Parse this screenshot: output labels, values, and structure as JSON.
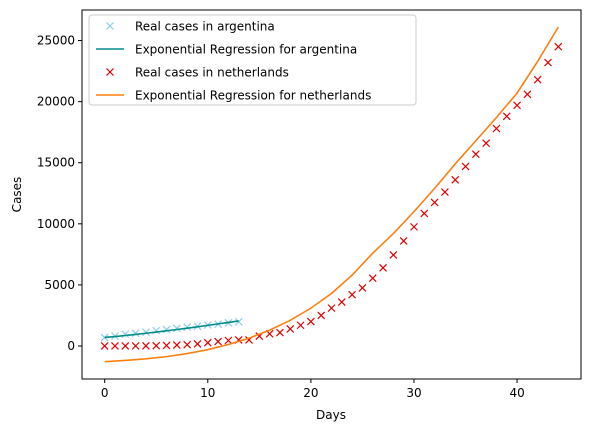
{
  "chart_data": {
    "type": "line",
    "title": "",
    "xlabel": "Days",
    "ylabel": "Cases",
    "xlim": [
      -2.2,
      46.2
    ],
    "ylim": [
      -2700,
      27500
    ],
    "xticks": [
      0,
      10,
      20,
      30,
      40
    ],
    "yticks": [
      0,
      5000,
      10000,
      15000,
      20000,
      25000
    ],
    "grid": false,
    "legend_position": "top-left",
    "series": [
      {
        "name": "Real cases in argentina",
        "kind": "marker",
        "marker": "x",
        "color": "#87ceeb",
        "x": [
          0,
          1,
          2,
          3,
          4,
          5,
          6,
          7,
          8,
          9,
          10,
          11,
          12,
          13
        ],
        "y": [
          690,
          820,
          970,
          1050,
          1130,
          1260,
          1350,
          1450,
          1550,
          1620,
          1720,
          1790,
          1900,
          1980
        ]
      },
      {
        "name": "Exponential Regression for argentina",
        "kind": "line",
        "color": "#008b8b",
        "x": [
          0,
          1,
          2,
          3,
          4,
          5,
          6,
          7,
          8,
          9,
          10,
          11,
          12,
          13
        ],
        "y": [
          700,
          775,
          860,
          950,
          1045,
          1140,
          1245,
          1350,
          1460,
          1575,
          1690,
          1810,
          1930,
          2050
        ]
      },
      {
        "name": "Real cases in netherlands",
        "kind": "marker",
        "marker": "x",
        "color": "#e00000",
        "x": [
          0,
          1,
          2,
          3,
          4,
          5,
          6,
          7,
          8,
          9,
          10,
          11,
          12,
          13,
          14,
          15,
          16,
          17,
          18,
          19,
          20,
          21,
          22,
          23,
          24,
          25,
          26,
          27,
          28,
          29,
          30,
          31,
          32,
          33,
          34,
          35,
          36,
          37,
          38,
          39,
          40,
          41,
          42,
          43,
          44
        ],
        "y": [
          2,
          3,
          5,
          10,
          20,
          30,
          50,
          80,
          110,
          170,
          270,
          360,
          450,
          500,
          500,
          800,
          1000,
          1100,
          1400,
          1700,
          2000,
          2500,
          3100,
          3600,
          4200,
          4750,
          5550,
          6400,
          7450,
          8600,
          9750,
          10850,
          11750,
          12600,
          13600,
          14700,
          15700,
          16600,
          17800,
          18800,
          19700,
          20600,
          21800,
          23200,
          24500
        ]
      },
      {
        "name": "Exponential Regression for netherlands",
        "kind": "line",
        "color": "#ff7f0e",
        "x": [
          0,
          2,
          4,
          6,
          8,
          10,
          12,
          14,
          16,
          18,
          20,
          22,
          24,
          26,
          28,
          30,
          32,
          34,
          36,
          38,
          40,
          42,
          44
        ],
        "y": [
          -1280,
          -1180,
          -1050,
          -870,
          -620,
          -300,
          120,
          640,
          1300,
          2100,
          3100,
          4300,
          5800,
          7600,
          9200,
          11000,
          12900,
          14900,
          16800,
          18700,
          20700,
          23300,
          26100
        ]
      }
    ]
  }
}
